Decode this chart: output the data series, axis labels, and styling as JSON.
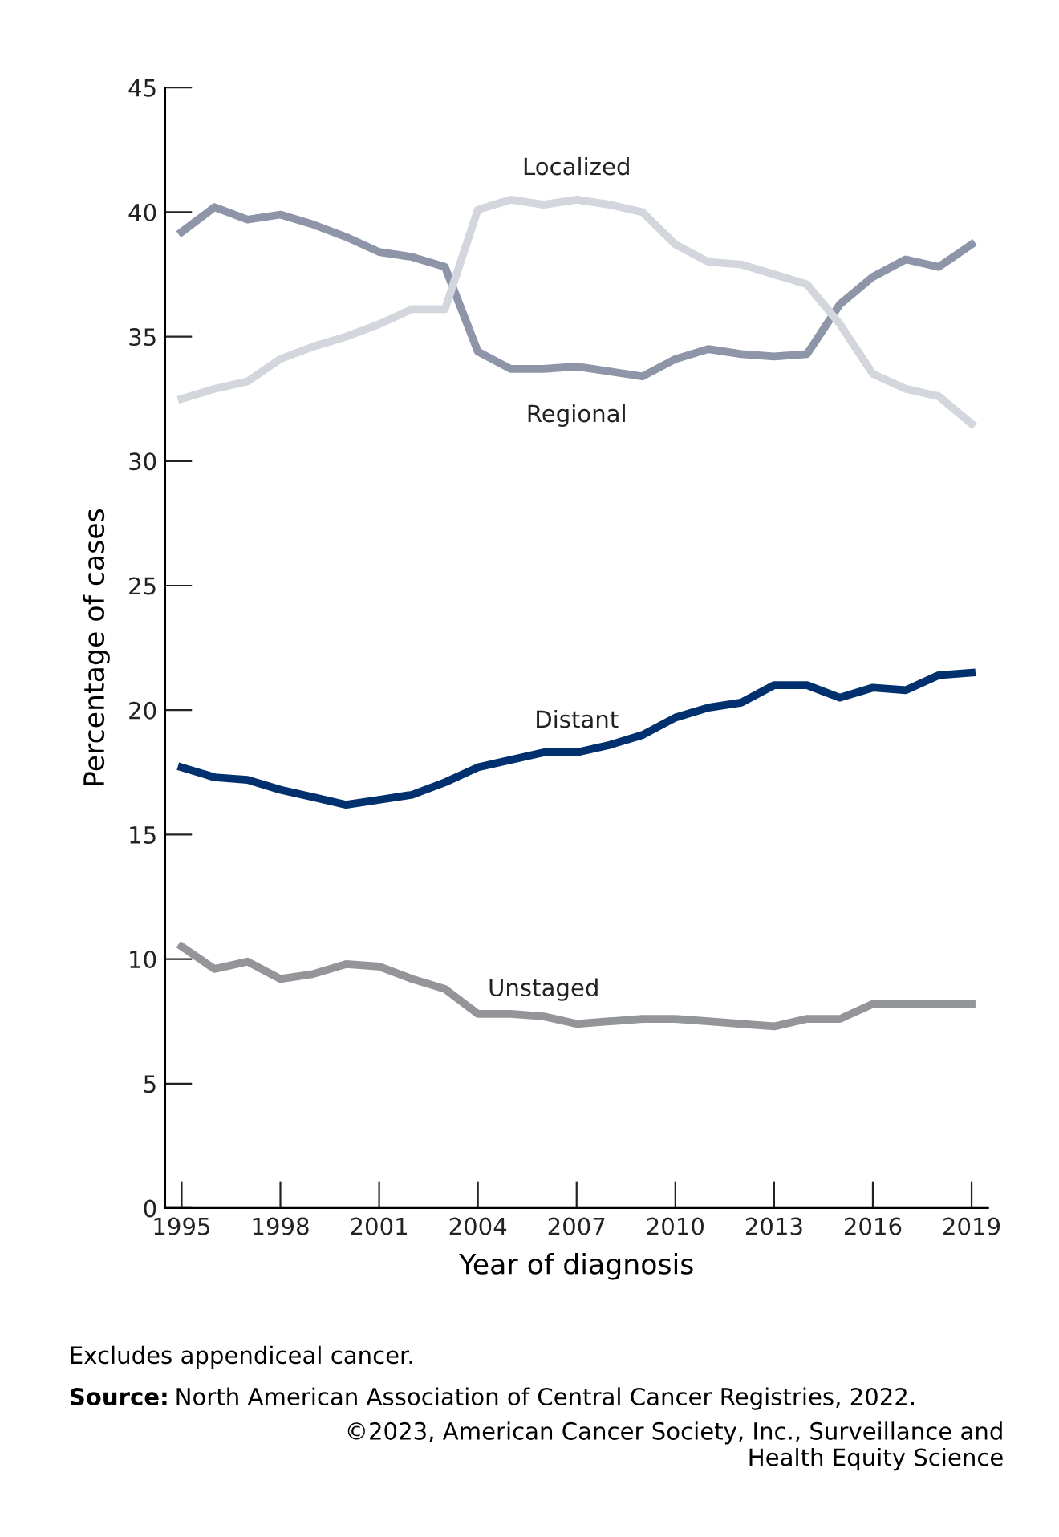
{
  "chart_data": {
    "type": "line",
    "xlabel": "Year of diagnosis",
    "ylabel": "Percentage of cases",
    "x": [
      1995,
      1996,
      1997,
      1998,
      1999,
      2000,
      2001,
      2002,
      2003,
      2004,
      2005,
      2006,
      2007,
      2008,
      2009,
      2010,
      2011,
      2012,
      2013,
      2014,
      2015,
      2016,
      2017,
      2018,
      2019
    ],
    "series": [
      {
        "name": "Regional",
        "color": "#8e95a8",
        "values": [
          39.2,
          40.2,
          39.7,
          39.9,
          39.5,
          39.0,
          38.4,
          38.2,
          37.8,
          34.4,
          33.7,
          33.7,
          33.8,
          33.6,
          33.4,
          34.1,
          34.5,
          34.3,
          34.2,
          34.3,
          36.3,
          37.4,
          38.1,
          37.8,
          38.7
        ]
      },
      {
        "name": "Localized",
        "color": "#d3d6dd",
        "values": [
          32.5,
          32.9,
          33.2,
          34.1,
          34.6,
          35.0,
          35.5,
          36.1,
          36.1,
          40.1,
          40.5,
          40.3,
          40.5,
          40.3,
          40.0,
          38.7,
          38.0,
          37.9,
          37.5,
          37.1,
          35.5,
          33.5,
          32.9,
          32.6,
          31.5
        ]
      },
      {
        "name": "Distant",
        "color": "#00306e",
        "values": [
          17.7,
          17.3,
          17.2,
          16.8,
          16.5,
          16.2,
          16.4,
          16.6,
          17.1,
          17.7,
          18.0,
          18.3,
          18.3,
          18.6,
          19.0,
          19.7,
          20.1,
          20.3,
          21.0,
          21.0,
          20.5,
          20.9,
          20.8,
          21.4,
          21.5
        ]
      },
      {
        "name": "Unstaged",
        "color": "#939598",
        "values": [
          10.5,
          9.6,
          9.9,
          9.2,
          9.4,
          9.8,
          9.7,
          9.2,
          8.8,
          7.8,
          7.8,
          7.7,
          7.4,
          7.5,
          7.6,
          7.6,
          7.5,
          7.4,
          7.3,
          7.6,
          7.6,
          8.2,
          8.2,
          8.2,
          8.2
        ]
      }
    ],
    "xlim": [
      1994.5,
      2019.5
    ],
    "xticks": [
      1995,
      1998,
      2001,
      2004,
      2007,
      2010,
      2013,
      2016,
      2019
    ],
    "ylim": [
      0,
      45
    ],
    "yticks": [
      0,
      5,
      10,
      15,
      20,
      25,
      30,
      35,
      40,
      45
    ],
    "grid": false,
    "legend": false,
    "marker": "none",
    "line_style": "solid",
    "annotations": [
      "Excludes appendiceal cancer.",
      "Source: North American Association of Central Cancer Registries, 2022.",
      "©2023, American Cancer Society, Inc., Surveillance and\nHealth Equity Science"
    ]
  }
}
